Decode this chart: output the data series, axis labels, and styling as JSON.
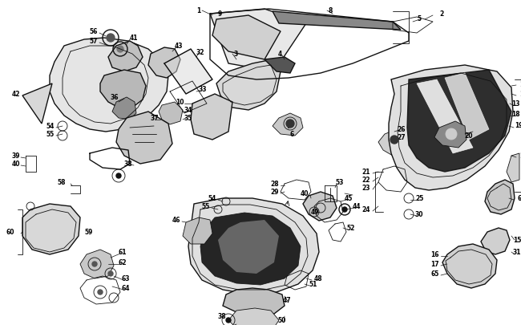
{
  "background_color": "#ffffff",
  "line_color": "#111111",
  "text_color": "#000000",
  "fig_width": 6.5,
  "fig_height": 4.06,
  "dpi": 100
}
